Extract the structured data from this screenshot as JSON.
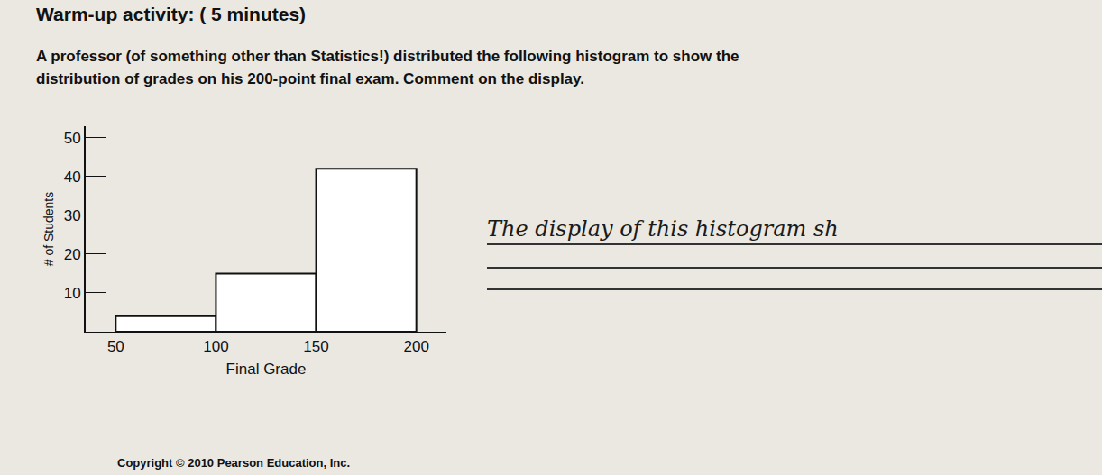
{
  "header": "Warm-up activity:  ( 5 minutes)",
  "prompt": [
    "A professor (of something other than Statistics!) distributed the following histogram to show the",
    "distribution of grades on his 200-point final exam. Comment on the display."
  ],
  "answer": "The display of this histogram sh",
  "copyright": "Copyright © 2010 Pearson Education, Inc.",
  "chart_data": {
    "type": "histogram",
    "x_label": "Final Grade",
    "y_label": "# of Students",
    "bins": [
      50,
      100,
      150,
      200
    ],
    "counts": [
      4,
      15,
      42
    ],
    "color": "#ffffff",
    "xlim": [
      35,
      215
    ],
    "ylim": [
      0,
      53
    ],
    "xticks": [
      50,
      100,
      150,
      200
    ],
    "yticks": [
      10,
      20,
      30,
      40,
      50
    ],
    "grid": false
  }
}
